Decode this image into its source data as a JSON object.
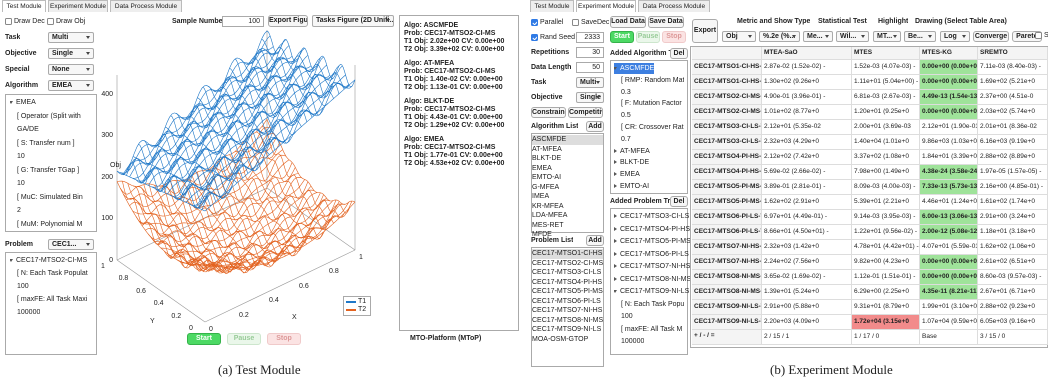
{
  "test_module": {
    "tabs": [
      "Test Module",
      "Experiment Module",
      "Data Process Module"
    ],
    "active_tab": 0,
    "checkboxes": [
      "Draw Dec",
      "Draw Obj"
    ],
    "fields": [
      {
        "label": "Task",
        "value": "Multi"
      },
      {
        "label": "Objective",
        "value": "Single"
      },
      {
        "label": "Special",
        "value": "None"
      },
      {
        "label": "Algorithm",
        "value": "EMEA"
      }
    ],
    "algorithm_tree": [
      {
        "text": "EMEA",
        "level": 0
      },
      {
        "text": "[ Operator (Split with",
        "level": 1
      },
      {
        "text": "GA/DE",
        "level": 1
      },
      {
        "text": "[ S: Transfer num ]",
        "level": 1
      },
      {
        "text": "10",
        "level": 1
      },
      {
        "text": "[ G: Transfer TGap ]",
        "level": 1
      },
      {
        "text": "10",
        "level": 1
      },
      {
        "text": "[ MuC: Simulated Bin",
        "level": 1
      },
      {
        "text": "2",
        "level": 1
      },
      {
        "text": "[ MuM: Polynomial M",
        "level": 1
      }
    ],
    "problem": {
      "label": "Problem",
      "value": "CEC1..."
    },
    "problem_tree": [
      {
        "text": "CEC17-MTSO2-CI-MS",
        "level": 0
      },
      {
        "text": "[ N: Each Task Populat",
        "level": 1
      },
      {
        "text": "100",
        "level": 1
      },
      {
        "text": "[ maxFE: All Task Maxi",
        "level": 1
      },
      {
        "text": "100000",
        "level": 1
      }
    ],
    "sample_number": {
      "label": "Sample Number",
      "value": 100
    },
    "export_button": "Export Figure",
    "figure_type": "Tasks Figure (2D Unifi...",
    "plot": {
      "z_label": "Obj",
      "x_label": "X",
      "y_label": "Y",
      "x_ticks": [
        0,
        0.2,
        0.4,
        0.6,
        0.8,
        1
      ],
      "y_ticks": [
        0,
        0.2,
        0.4,
        0.6,
        0.8,
        1
      ],
      "z_ticks": [
        0,
        100,
        200,
        300,
        400
      ],
      "legend": [
        {
          "name": "T1",
          "color": "#1f78c8"
        },
        {
          "name": "T2",
          "color": "#e3621f"
        }
      ]
    },
    "buttons": [
      "Start",
      "Pause",
      "Stop"
    ],
    "results": [
      [
        "Algo: ASCMFDE",
        "Prob: CEC17-MTSO2-CI-MS",
        "T1 Obj: 2.02e+00 CV: 0.00e+00",
        "T2 Obj: 3.39e+02 CV: 0.00e+00"
      ],
      [
        "Algo: AT-MFEA",
        "Prob: CEC17-MTSO2-CI-MS",
        "T1 Obj: 1.40e-02 CV: 0.00e+00",
        "T2 Obj: 1.13e-01 CV: 0.00e+00"
      ],
      [
        "Algo: BLKT-DE",
        "Prob: CEC17-MTSO2-CI-MS",
        "T1 Obj: 4.43e-01 CV: 0.00e+00",
        "T2 Obj: 1.29e+02 CV: 0.00e+00"
      ],
      [
        "Algo: EMEA",
        "Prob: CEC17-MTSO2-CI-MS",
        "T1 Obj: 1.77e-01 CV: 0.00e+00",
        "T2 Obj: 4.53e+02 CV: 0.00e+00"
      ]
    ],
    "footer": "MTO-Platform (MToP)"
  },
  "experiment_module": {
    "tabs": [
      "Test Module",
      "Experiment Module",
      "Data Process Module"
    ],
    "active_tab": 1,
    "checkboxes": [
      {
        "label": "Parallel",
        "checked": true
      },
      {
        "label": "SaveDec",
        "checked": false
      },
      {
        "label": "Rand Seed",
        "checked": true
      }
    ],
    "rand_seed": 2333,
    "data_buttons": [
      "Load Data",
      "Save Data"
    ],
    "run_buttons": [
      "Start",
      "Pause",
      "Stop"
    ],
    "fields": [
      {
        "label": "Repetitions",
        "value": 30
      },
      {
        "label": "Data Length",
        "value": 50
      },
      {
        "label": "Task",
        "value": "Multi"
      },
      {
        "label": "Objective",
        "value": "Single"
      }
    ],
    "special_buttons": [
      "Constrained",
      "Competitive"
    ],
    "algorithm_list": {
      "title": "Algorithm List",
      "button": "Add",
      "selected": 0,
      "items": [
        "ASCMFDE",
        "AT-MFEA",
        "BLKT-DE",
        "EMEA",
        "EMTO-AI",
        "G-MFEA",
        "IMEA",
        "KR-MFEA",
        "LDA-MFEA",
        "MES-RET",
        "MFDE"
      ]
    },
    "problem_list": {
      "title": "Problem List",
      "button": "Add",
      "selected": 0,
      "items": [
        "CEC17-MTSO1-CI-HS",
        "CEC17-MTSO2-CI-MS",
        "CEC17-MTSO3-CI-LS",
        "CEC17-MTSO4-PI-HS",
        "CEC17-MTSO5-PI-MS",
        "CEC17-MTSO6-PI-LS",
        "CEC17-MTSO7-NI-HS",
        "CEC17-MTSO8-NI-MS",
        "CEC17-MTSO9-NI-LS",
        "MOA-OSM-GTOP"
      ]
    },
    "added_algorithm_tree": {
      "title": "Added Algorithm Tree",
      "button": "Del",
      "selected": 0,
      "items": [
        {
          "text": "ASCMFDE",
          "level": 0
        },
        {
          "text": "[ RMP: Random Mat",
          "level": 1
        },
        {
          "text": "0.3",
          "level": 1
        },
        {
          "text": "[ F: Mutation Factor",
          "level": 1
        },
        {
          "text": "0.5",
          "level": 1
        },
        {
          "text": "[ CR: Crossover Rat",
          "level": 1
        },
        {
          "text": "0.7",
          "level": 1
        },
        {
          "text": "AT-MFEA",
          "level": 0
        },
        {
          "text": "BLKT-DE",
          "level": 0
        },
        {
          "text": "EMEA",
          "level": 0
        },
        {
          "text": "EMTO-AI",
          "level": 0
        }
      ]
    },
    "added_problem_tree": {
      "title": "Added Problem Tree",
      "button": "Del",
      "items": [
        {
          "text": "CEC17-MTSO3-CI-LS",
          "level": 0
        },
        {
          "text": "CEC17-MTSO4-PI-HS",
          "level": 0
        },
        {
          "text": "CEC17-MTSO5-PI-MS",
          "level": 0
        },
        {
          "text": "CEC17-MTSO6-PI-LS",
          "level": 0
        },
        {
          "text": "CEC17-MTSO7-NI-HS",
          "level": 0
        },
        {
          "text": "CEC17-MTSO8-NI-MS",
          "level": 0
        },
        {
          "text": "CEC17-MTSO9-NI-LS",
          "level": 0
        },
        {
          "text": "[ N: Each Task Popu",
          "level": 1
        },
        {
          "text": "100",
          "level": 1
        },
        {
          "text": "[ maxFE: All Task M",
          "level": 1
        },
        {
          "text": "100000",
          "level": 1
        }
      ]
    },
    "toolbar": {
      "export": "Export",
      "groups": [
        "Metric and Show Type",
        "Statistical Test",
        "Highlight",
        "Drawing (Select Table Area)"
      ],
      "controls": [
        {
          "text": "Obj",
          "kind": "select"
        },
        {
          "text": "%.2e (%...",
          "kind": "select"
        },
        {
          "text": "Me...",
          "kind": "select"
        },
        {
          "text": "Wil...",
          "kind": "select"
        },
        {
          "text": "MT...",
          "kind": "select"
        },
        {
          "text": "Be...",
          "kind": "select"
        },
        {
          "text": "Log",
          "kind": "select"
        },
        {
          "text": "Converge",
          "kind": "button"
        },
        {
          "text": "Pareto",
          "kind": "button"
        },
        {
          "text": "Split",
          "kind": "checkbox"
        }
      ]
    },
    "table": {
      "columns": [
        "MTEA-SaO",
        "MTES",
        "MTES-KG",
        "SREMTO"
      ],
      "rows": [
        {
          "label": "CEC17-MTSO1-CI-HS-T1",
          "cells": [
            "2.87e-02 (1.52e-02) -",
            "1.52e-03 (4.07e-03) -",
            "0.00e+00 (0.00e+00)",
            "7.11e-03 (8.40e-03) -"
          ]
        },
        {
          "label": "CEC17-MTSO1-CI-HS-T2",
          "cells": [
            "1.30e+02 (9.26e+0",
            "1.11e+01 (5.04e+00) -",
            "0.00e+00 (0.00e+00)",
            "1.69e+02 (5.21e+0"
          ]
        },
        {
          "label": "CEC17-MTSO2-CI-MS-T1",
          "cells": [
            "4.90e-01 (3.96e-01) -",
            "6.81e-03 (2.67e-03) -",
            "4.49e-13 (1.54e-13)",
            "2.37e+00 (4.51e-0"
          ]
        },
        {
          "label": "CEC17-MTSO2-CI-MS-T2",
          "cells": [
            "1.01e+02 (8.77e+0",
            "1.20e+01 (9.25e+0",
            "0.00e+00 (0.00e+00)",
            "2.03e+02 (5.74e+0"
          ]
        },
        {
          "label": "CEC17-MTSO3-CI-LS-T1",
          "cells": [
            "2.12e+01 (5.35e-02",
            "2.00e+01 (3.69e-03",
            "2.12e+01 (1.90e-01)",
            "2.01e+01 (8.36e-02"
          ]
        },
        {
          "label": "CEC17-MTSO3-CI-LS-T2",
          "cells": [
            "2.32e+03 (4.29e+0",
            "1.40e+04 (1.01e+0",
            "9.86e+03 (1.03e+03)",
            "6.16e+03 (9.19e+0"
          ]
        },
        {
          "label": "CEC17-MTSO4-PI-HS-T1",
          "cells": [
            "2.12e+02 (7.42e+0",
            "3.37e+02 (1.08e+0",
            "1.84e+01 (3.39e+00)",
            "2.88e+02 (8.89e+0"
          ]
        },
        {
          "label": "CEC17-MTSO4-PI-HS-T2",
          "cells": [
            "5.69e-02 (2.66e-02) -",
            "7.98e+00 (1.49e+0",
            "4.38e-24 (3.58e-24)",
            "1.97e-05 (1.57e-05) -"
          ]
        },
        {
          "label": "CEC17-MTSO5-PI-MS-T1",
          "cells": [
            "3.89e-01 (2.81e-01) -",
            "8.09e-03 (4.00e-03) -",
            "7.33e-13 (5.73e-13)",
            "2.16e+00 (4.85e-01) -"
          ]
        },
        {
          "label": "CEC17-MTSO5-PI-MS-T2",
          "cells": [
            "1.62e+02 (2.91e+0",
            "5.39e+01 (2.21e+0",
            "4.46e+01 (1.24e+01)",
            "1.61e+02 (1.74e+0"
          ]
        },
        {
          "label": "CEC17-MTSO6-PI-LS-T1",
          "cells": [
            "6.97e+01 (4.49e-01) -",
            "9.14e-03 (3.95e-03) -",
            "6.00e-13 (3.06e-13)",
            "2.91e+00 (3.24e+0"
          ]
        },
        {
          "label": "CEC17-MTSO6-PI-LS-T2",
          "cells": [
            "8.66e+01 (4.50e+01) -",
            "1.22e+01 (9.56e-02) -",
            "2.00e-12 (5.08e-12)",
            "1.18e+01 (3.18e+0"
          ]
        },
        {
          "label": "CEC17-MTSO7-NI-HS-T1",
          "cells": [
            "2.32e+03 (1.42e+0",
            "4.78e+01 (4.42e+01) -",
            "4.07e+01 (5.59e-01)",
            "1.62e+02 (1.06e+0"
          ]
        },
        {
          "label": "CEC17-MTSO7-NI-HS-T2",
          "cells": [
            "2.24e+02 (7.56e+0",
            "9.82e+00 (4.23e+0",
            "0.00e+00 (0.00e+00)",
            "2.61e+02 (6.51e+0"
          ]
        },
        {
          "label": "CEC17-MTSO8-NI-MS-T1",
          "cells": [
            "3.65e-02 (1.69e-02) -",
            "1.12e-01 (1.51e-01) -",
            "0.00e+00 (0.00e+00)",
            "8.60e-03 (9.57e-03) -"
          ]
        },
        {
          "label": "CEC17-MTSO8-NI-MS-T2",
          "cells": [
            "1.39e+01 (5.24e+0",
            "6.29e+00 (2.25e+0",
            "4.35e-11 (8.21e-11)",
            "2.67e+01 (6.71e+0"
          ]
        },
        {
          "label": "CEC17-MTSO9-NI-LS-T1",
          "cells": [
            "2.91e+00 (5.88e+0",
            "9.31e+01 (8.79e+0",
            "1.99e+01 (3.10e+00)",
            "2.88e+02 (9.23e+0"
          ]
        },
        {
          "label": "CEC17-MTSO9-NI-LS-T2",
          "cells": [
            "2.20e+03 (4.09e+0",
            "1.72e+04 (3.15e+0",
            "1.07e+04 (9.59e+02)",
            "6.05e+03 (9.16e+0"
          ]
        }
      ],
      "summary": {
        "label": "+ / - / =",
        "cells": [
          "2 / 15 / 1",
          "1 / 17 / 0",
          "Base",
          "3 / 15 / 0"
        ]
      },
      "best_cells": [
        [
          0,
          2
        ],
        [
          1,
          2
        ],
        [
          2,
          2
        ],
        [
          3,
          2
        ],
        [
          7,
          2
        ],
        [
          8,
          2
        ],
        [
          10,
          2
        ],
        [
          11,
          2
        ],
        [
          13,
          2
        ],
        [
          14,
          2
        ],
        [
          15,
          2
        ]
      ],
      "worst_cells": [
        [
          17,
          1
        ]
      ],
      "best_color": "#9fe39a",
      "worst_color": "#f28b8b"
    }
  },
  "captions": [
    "(a) Test Module",
    "(b) Experiment Module"
  ]
}
